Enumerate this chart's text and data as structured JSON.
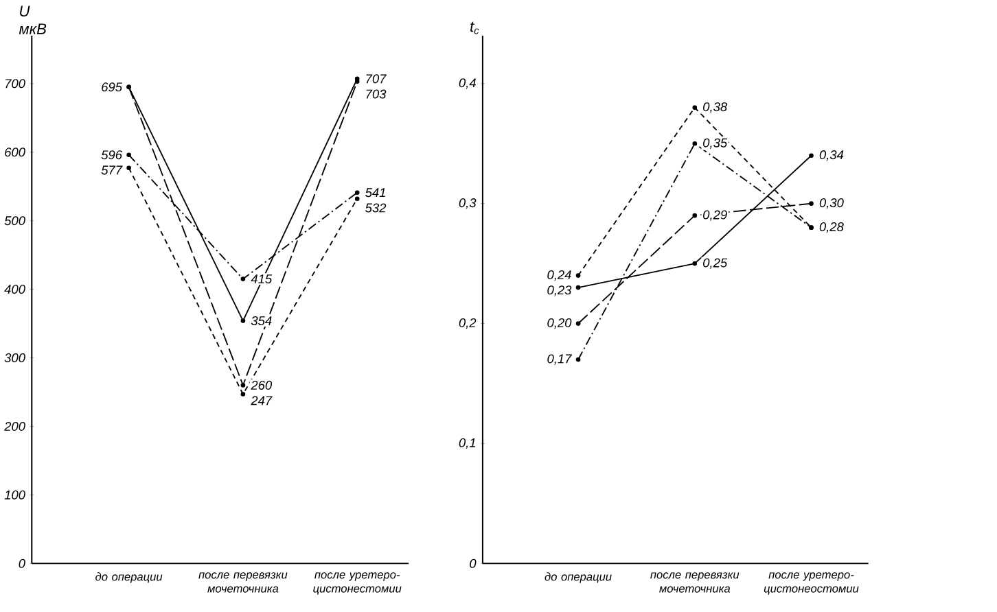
{
  "chart_data": [
    {
      "type": "line",
      "ylabel": "U мкВ",
      "categories": [
        "до операции",
        "после перевязки мочеточника",
        "после уретеро-цистонестомии"
      ],
      "ylim": [
        0,
        770
      ],
      "yticks": [
        0,
        100,
        200,
        300,
        400,
        500,
        600,
        700
      ],
      "marker": "circle",
      "grid": false,
      "series": [
        {
          "color": "#000000",
          "line_style": "solid",
          "values": [
            695,
            354,
            707
          ],
          "value_labels": [
            "695",
            "354",
            "707"
          ]
        },
        {
          "color": "#000000",
          "line_style": "long dashed",
          "values": [
            695,
            260,
            703
          ],
          "value_labels": [
            null,
            "260",
            "703"
          ]
        },
        {
          "color": "#000000",
          "line_style": "dashdot",
          "values": [
            596,
            415,
            541
          ],
          "value_labels": [
            "596",
            "415",
            "541"
          ]
        },
        {
          "color": "#000000",
          "line_style": "dashed",
          "values": [
            577,
            247,
            532
          ],
          "value_labels": [
            "577",
            "247",
            "532"
          ]
        }
      ]
    },
    {
      "type": "line",
      "ylabel": "t$_{c}$",
      "categories": [
        "до операции",
        "после перевязки мочеточника",
        "после уретеро-цистонеостомии"
      ],
      "ylim": [
        0,
        0.44
      ],
      "yticks": [
        0,
        {
          "value": 0.1,
          "label": "0,1"
        },
        {
          "value": 0.2,
          "label": "0,2"
        },
        {
          "value": 0.3,
          "label": "0,3"
        },
        {
          "value": 0.4,
          "label": "0,4"
        }
      ],
      "marker": "circle",
      "grid": false,
      "series": [
        {
          "color": "#000000",
          "line_style": "dashed",
          "values": [
            0.24,
            0.38,
            0.28
          ],
          "value_labels": [
            "0,24",
            "0,38",
            "0,28"
          ]
        },
        {
          "color": "#000000",
          "line_style": "solid",
          "values": [
            0.23,
            0.25,
            0.34
          ],
          "value_labels": [
            "0,23",
            "0,25",
            "0,34"
          ]
        },
        {
          "color": "#000000",
          "line_style": "long dashed",
          "values": [
            0.2,
            0.29,
            0.3
          ],
          "value_labels": [
            "0,20",
            "0,29",
            "0,30"
          ]
        },
        {
          "color": "#000000",
          "line_style": "dashdot",
          "values": [
            0.17,
            0.35,
            0.28
          ],
          "value_labels": [
            "0,17",
            "0,35",
            null
          ]
        }
      ]
    }
  ]
}
